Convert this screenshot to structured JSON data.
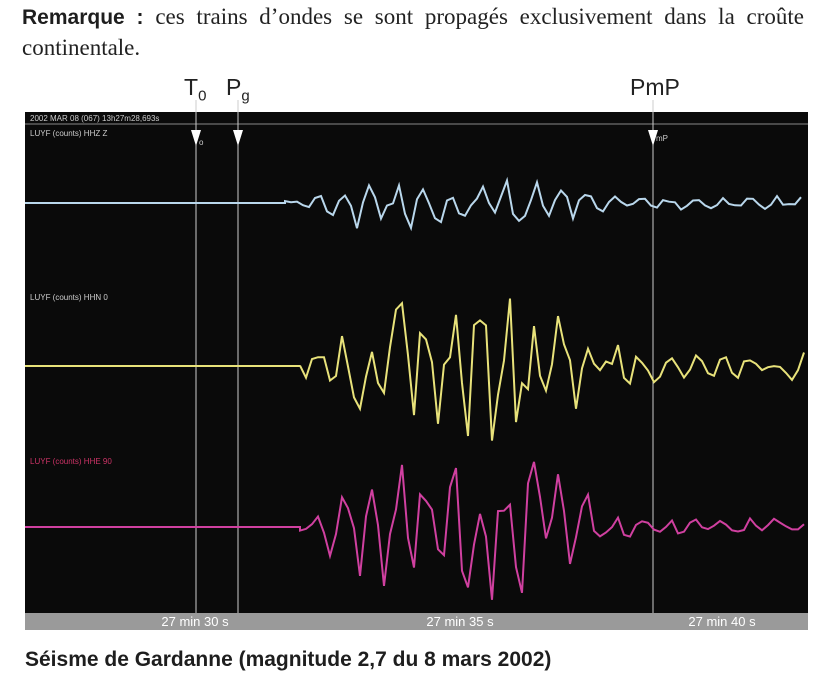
{
  "remark": {
    "label": "Remarque :",
    "text": "ces trains d’ondes se sont propagés exclusivement dans la croûte continentale."
  },
  "markers": [
    {
      "letter": "T",
      "sub": "0"
    },
    {
      "letter": "P",
      "sub": "g"
    },
    {
      "label": "PmP"
    }
  ],
  "seismogram": {
    "header": "2002 MAR 08 (067) 13h27m28,693s",
    "channels": [
      "LUYF (counts) HHZ Z",
      "LUYF (counts) HHN 0",
      "LUYF (counts) HHE 90"
    ],
    "pick_labels": [
      "o",
      "mP"
    ],
    "time_labels": [
      "27 min 30 s",
      "27 min 35 s",
      "27 min 40 s"
    ]
  },
  "caption": "Séisme de Gardanne (magnitude 2,7 du 8 mars 2002)"
}
